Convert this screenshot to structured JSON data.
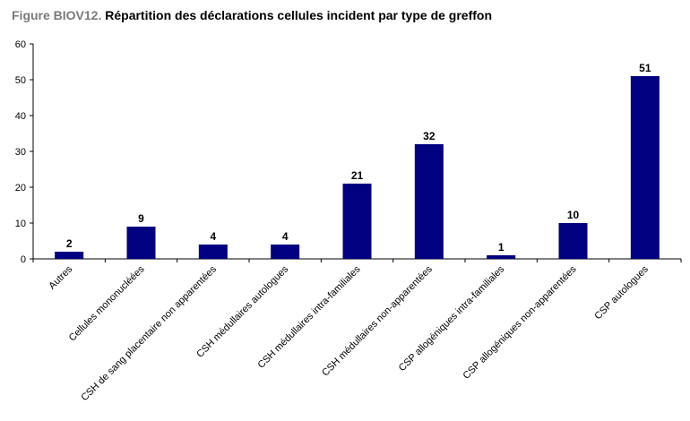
{
  "figure": {
    "prefix": "Figure BIOV12.",
    "title": "Répartition des déclarations cellules incident par type de greffon"
  },
  "chart_data": {
    "type": "bar",
    "categories": [
      "Autres",
      "Cellules mononucléées",
      "CSH de sang placentaire non apparentées",
      "CSH médullaires autologues",
      "CSH médullaires intra-familiales",
      "CSH médullaires non-apparentées",
      "CSP allogéniques intra-familiales",
      "CSP allogéniques non-apparentées",
      "CSP  autologues"
    ],
    "values": [
      2,
      9,
      4,
      4,
      21,
      32,
      1,
      10,
      51
    ],
    "ylim": [
      0,
      60
    ],
    "yticks": [
      0,
      10,
      20,
      30,
      40,
      50,
      60
    ],
    "bar_color": "#000080",
    "grid": false,
    "legend": "none",
    "data_labels": true
  }
}
